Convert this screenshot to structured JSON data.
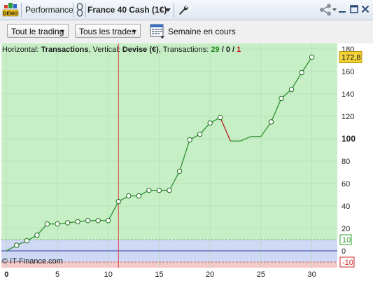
{
  "window": {
    "logo_text": "DEMO",
    "title": "Performance",
    "instrument": "France 40 Cash (1€)",
    "icons": {
      "logo": "demo-logo-icon",
      "link": "link-chain-icon",
      "wrench": "wrench-icon",
      "share": "share-icon",
      "minimize": "minimize-icon",
      "maximize": "maximize-icon",
      "close": "close-icon"
    }
  },
  "toolbar": {
    "trading_filter": "Tout le trading",
    "trades_filter": "Tous les trades",
    "period_label": "Semaine en cours",
    "calendar_icon": "calendar-icon"
  },
  "info_bar": {
    "horizontal_label": "Horizontal:",
    "horizontal_value": "Transactions",
    "vertical_label": "Vertical:",
    "vertical_value": "Devise (€)",
    "transactions_label": "Transactions:",
    "winning": "29",
    "neutral": "0",
    "losing": "1",
    "separator": " / "
  },
  "watermark": "© IT-Finance.com",
  "colors": {
    "profit_zone": "#c6efc6",
    "loss_zone": "#cfd8f5",
    "line": "#2f8f2f",
    "loss_line": "#b01f1f",
    "cursor": "#e04040",
    "value_badge": "#f3d33a",
    "upper_label": "#2e9e2e",
    "lower_label": "#d02424"
  },
  "chart_data": {
    "type": "line",
    "x": [
      0,
      1,
      2,
      3,
      4,
      5,
      6,
      7,
      8,
      9,
      10,
      11,
      12,
      13,
      14,
      15,
      16,
      17,
      18,
      19,
      20,
      21,
      22,
      23,
      24,
      25,
      26,
      27,
      28,
      29,
      30
    ],
    "y": [
      0,
      5,
      9,
      14,
      24,
      24,
      25,
      26,
      27,
      27,
      27,
      44,
      49,
      49,
      54,
      54,
      54,
      71,
      99,
      104,
      114,
      119,
      98,
      98,
      102,
      102,
      115,
      136,
      144,
      159,
      172.8
    ],
    "loss_segment": [
      21,
      22
    ],
    "xlim": [
      -0.5,
      32.5
    ],
    "ylim": [
      -15,
      185
    ],
    "x_ticks": [
      0,
      5,
      10,
      15,
      20,
      25,
      30
    ],
    "y_ticks": [
      0,
      20,
      40,
      60,
      80,
      100,
      120,
      140,
      160,
      180
    ],
    "y_tick_bold": 100,
    "cursor_x": 11,
    "current_value": "172,8",
    "upper_band": 10,
    "upper_band_label": "10",
    "lower_band": -10,
    "lower_band_label": "-10",
    "grid": true,
    "xlabel": "Transactions",
    "ylabel": "Devise (€)"
  }
}
